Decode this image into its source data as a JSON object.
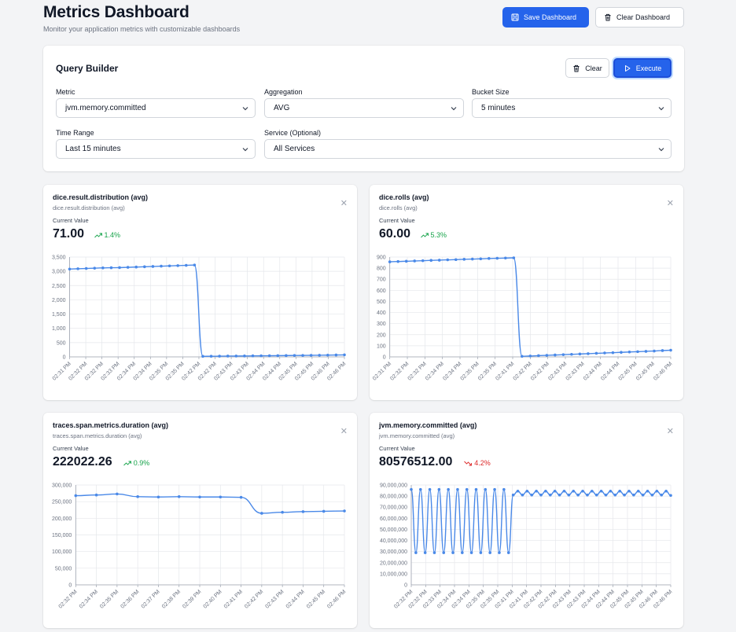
{
  "header": {
    "title": "Metrics Dashboard",
    "subtitle": "Monitor your application metrics with customizable dashboards",
    "save_label": "Save Dashboard",
    "clear_label": "Clear Dashboard"
  },
  "query_builder": {
    "title": "Query Builder",
    "clear_label": "Clear",
    "execute_label": "Execute",
    "metric": {
      "label": "Metric",
      "value": "jvm.memory.committed"
    },
    "aggregation": {
      "label": "Aggregation",
      "value": "AVG"
    },
    "bucket": {
      "label": "Bucket Size",
      "value": "5 minutes"
    },
    "time_range": {
      "label": "Time Range",
      "value": "Last 15 minutes"
    },
    "service": {
      "label": "Service (Optional)",
      "value": "All Services"
    }
  },
  "accent": "#2563eb",
  "line_color": "#4a89e8",
  "panels": [
    {
      "title": "dice.result.distribution (avg)",
      "subtitle": "dice.result.distribution (avg)",
      "cv_label": "Current Value",
      "value": "71.00",
      "trend": "1.4%",
      "trend_dir": "up"
    },
    {
      "title": "dice.rolls (avg)",
      "subtitle": "dice.rolls (avg)",
      "cv_label": "Current Value",
      "value": "60.00",
      "trend": "5.3%",
      "trend_dir": "up"
    },
    {
      "title": "traces.span.metrics.duration (avg)",
      "subtitle": "traces.span.metrics.duration (avg)",
      "cv_label": "Current Value",
      "value": "222022.26",
      "trend": "0.9%",
      "trend_dir": "up"
    },
    {
      "title": "jvm.memory.committed (avg)",
      "subtitle": "jvm.memory.committed (avg)",
      "cv_label": "Current Value",
      "value": "80576512.00",
      "trend": "4.2%",
      "trend_dir": "down"
    }
  ],
  "chart_data": [
    {
      "type": "line",
      "ylim": [
        0,
        3500
      ],
      "yticks": [
        "0",
        "500",
        "1,000",
        "1,500",
        "2,000",
        "2,500",
        "3,000",
        "3,500"
      ],
      "xticks": [
        "02:31 PM",
        "02:32 PM",
        "02:32 PM",
        "02:33 PM",
        "02:34 PM",
        "02:34 PM",
        "02:35 PM",
        "02:35 PM",
        "02:42 PM",
        "02:42 PM",
        "02:43 PM",
        "02:43 PM",
        "02:44 PM",
        "02:44 PM",
        "02:45 PM",
        "02:45 PM",
        "02:46 PM",
        "02:46 PM"
      ],
      "series": [
        {
          "values": [
            3080,
            3090,
            3100,
            3110,
            3120,
            3125,
            3130,
            3140,
            3150,
            3160,
            3170,
            3180,
            3190,
            3200,
            3210,
            3220,
            20,
            22,
            25,
            28,
            30,
            32,
            35,
            38,
            40,
            43,
            46,
            50,
            52,
            55,
            58,
            62,
            66,
            71
          ]
        }
      ]
    },
    {
      "type": "line",
      "ylim": [
        0,
        900
      ],
      "yticks": [
        "0",
        "100",
        "200",
        "300",
        "400",
        "500",
        "600",
        "700",
        "800",
        "900"
      ],
      "xticks": [
        "02:31 PM",
        "02:32 PM",
        "02:32 PM",
        "02:34 PM",
        "02:34 PM",
        "02:35 PM",
        "02:35 PM",
        "02:41 PM",
        "02:42 PM",
        "02:42 PM",
        "02:43 PM",
        "02:43 PM",
        "02:44 PM",
        "02:44 PM",
        "02:45 PM",
        "02:45 PM",
        "02:46 PM"
      ],
      "series": [
        {
          "values": [
            857,
            860,
            862,
            865,
            867,
            870,
            872,
            875,
            877,
            880,
            882,
            884,
            887,
            889,
            891,
            893,
            5,
            8,
            11,
            14,
            17,
            20,
            23,
            26,
            29,
            32,
            35,
            38,
            41,
            44,
            47,
            50,
            53,
            57,
            60
          ]
        }
      ]
    },
    {
      "type": "line",
      "ylim": [
        0,
        300000
      ],
      "yticks": [
        "0",
        "50,000",
        "100,000",
        "150,000",
        "200,000",
        "250,000",
        "300,000"
      ],
      "xticks": [
        "02:32 PM",
        "02:34 PM",
        "02:35 PM",
        "02:36 PM",
        "02:37 PM",
        "02:38 PM",
        "02:39 PM",
        "02:40 PM",
        "02:41 PM",
        "02:42 PM",
        "02:43 PM",
        "02:44 PM",
        "02:45 PM",
        "02:46 PM"
      ],
      "series": [
        {
          "values": [
            268000,
            270000,
            273000,
            265000,
            264000,
            265000,
            264000,
            264000,
            263000,
            215000,
            218000,
            220000,
            221000,
            222000
          ]
        }
      ]
    },
    {
      "type": "line",
      "ylim": [
        0,
        90000000
      ],
      "yticks": [
        "0",
        "10,000,000",
        "20,000,000",
        "30,000,000",
        "40,000,000",
        "50,000,000",
        "60,000,000",
        "70,000,000",
        "80,000,000",
        "90,000,000"
      ],
      "xticks": [
        "02:32 PM",
        "02:32 PM",
        "02:33 PM",
        "02:34 PM",
        "02:34 PM",
        "02:35 PM",
        "02:35 PM",
        "02:41 PM",
        "02:41 PM",
        "02:42 PM",
        "02:42 PM",
        "02:43 PM",
        "02:43 PM",
        "02:44 PM",
        "02:44 PM",
        "02:45 PM",
        "02:45 PM",
        "02:46 PM",
        "02:46 PM"
      ],
      "series": [
        {
          "values": [
            86000000,
            29000000,
            86000000,
            29000000,
            86000000,
            29000000,
            86000000,
            29000000,
            86000000,
            29000000,
            86000000,
            29000000,
            86000000,
            29000000,
            86000000,
            29000000,
            86000000,
            29000000,
            86000000,
            29000000,
            86000000,
            29000000,
            81000000,
            84500000,
            81000000,
            84500000,
            81000000,
            84500000,
            81000000,
            84500000,
            81000000,
            84500000,
            81000000,
            84500000,
            81000000,
            84500000,
            81000000,
            84500000,
            81000000,
            84500000,
            81000000,
            84500000,
            81000000,
            84500000,
            81000000,
            84500000,
            81000000,
            84500000,
            81000000,
            84500000,
            81000000,
            84500000,
            81000000,
            84500000,
            81000000,
            84500000,
            80576512
          ]
        }
      ]
    }
  ]
}
